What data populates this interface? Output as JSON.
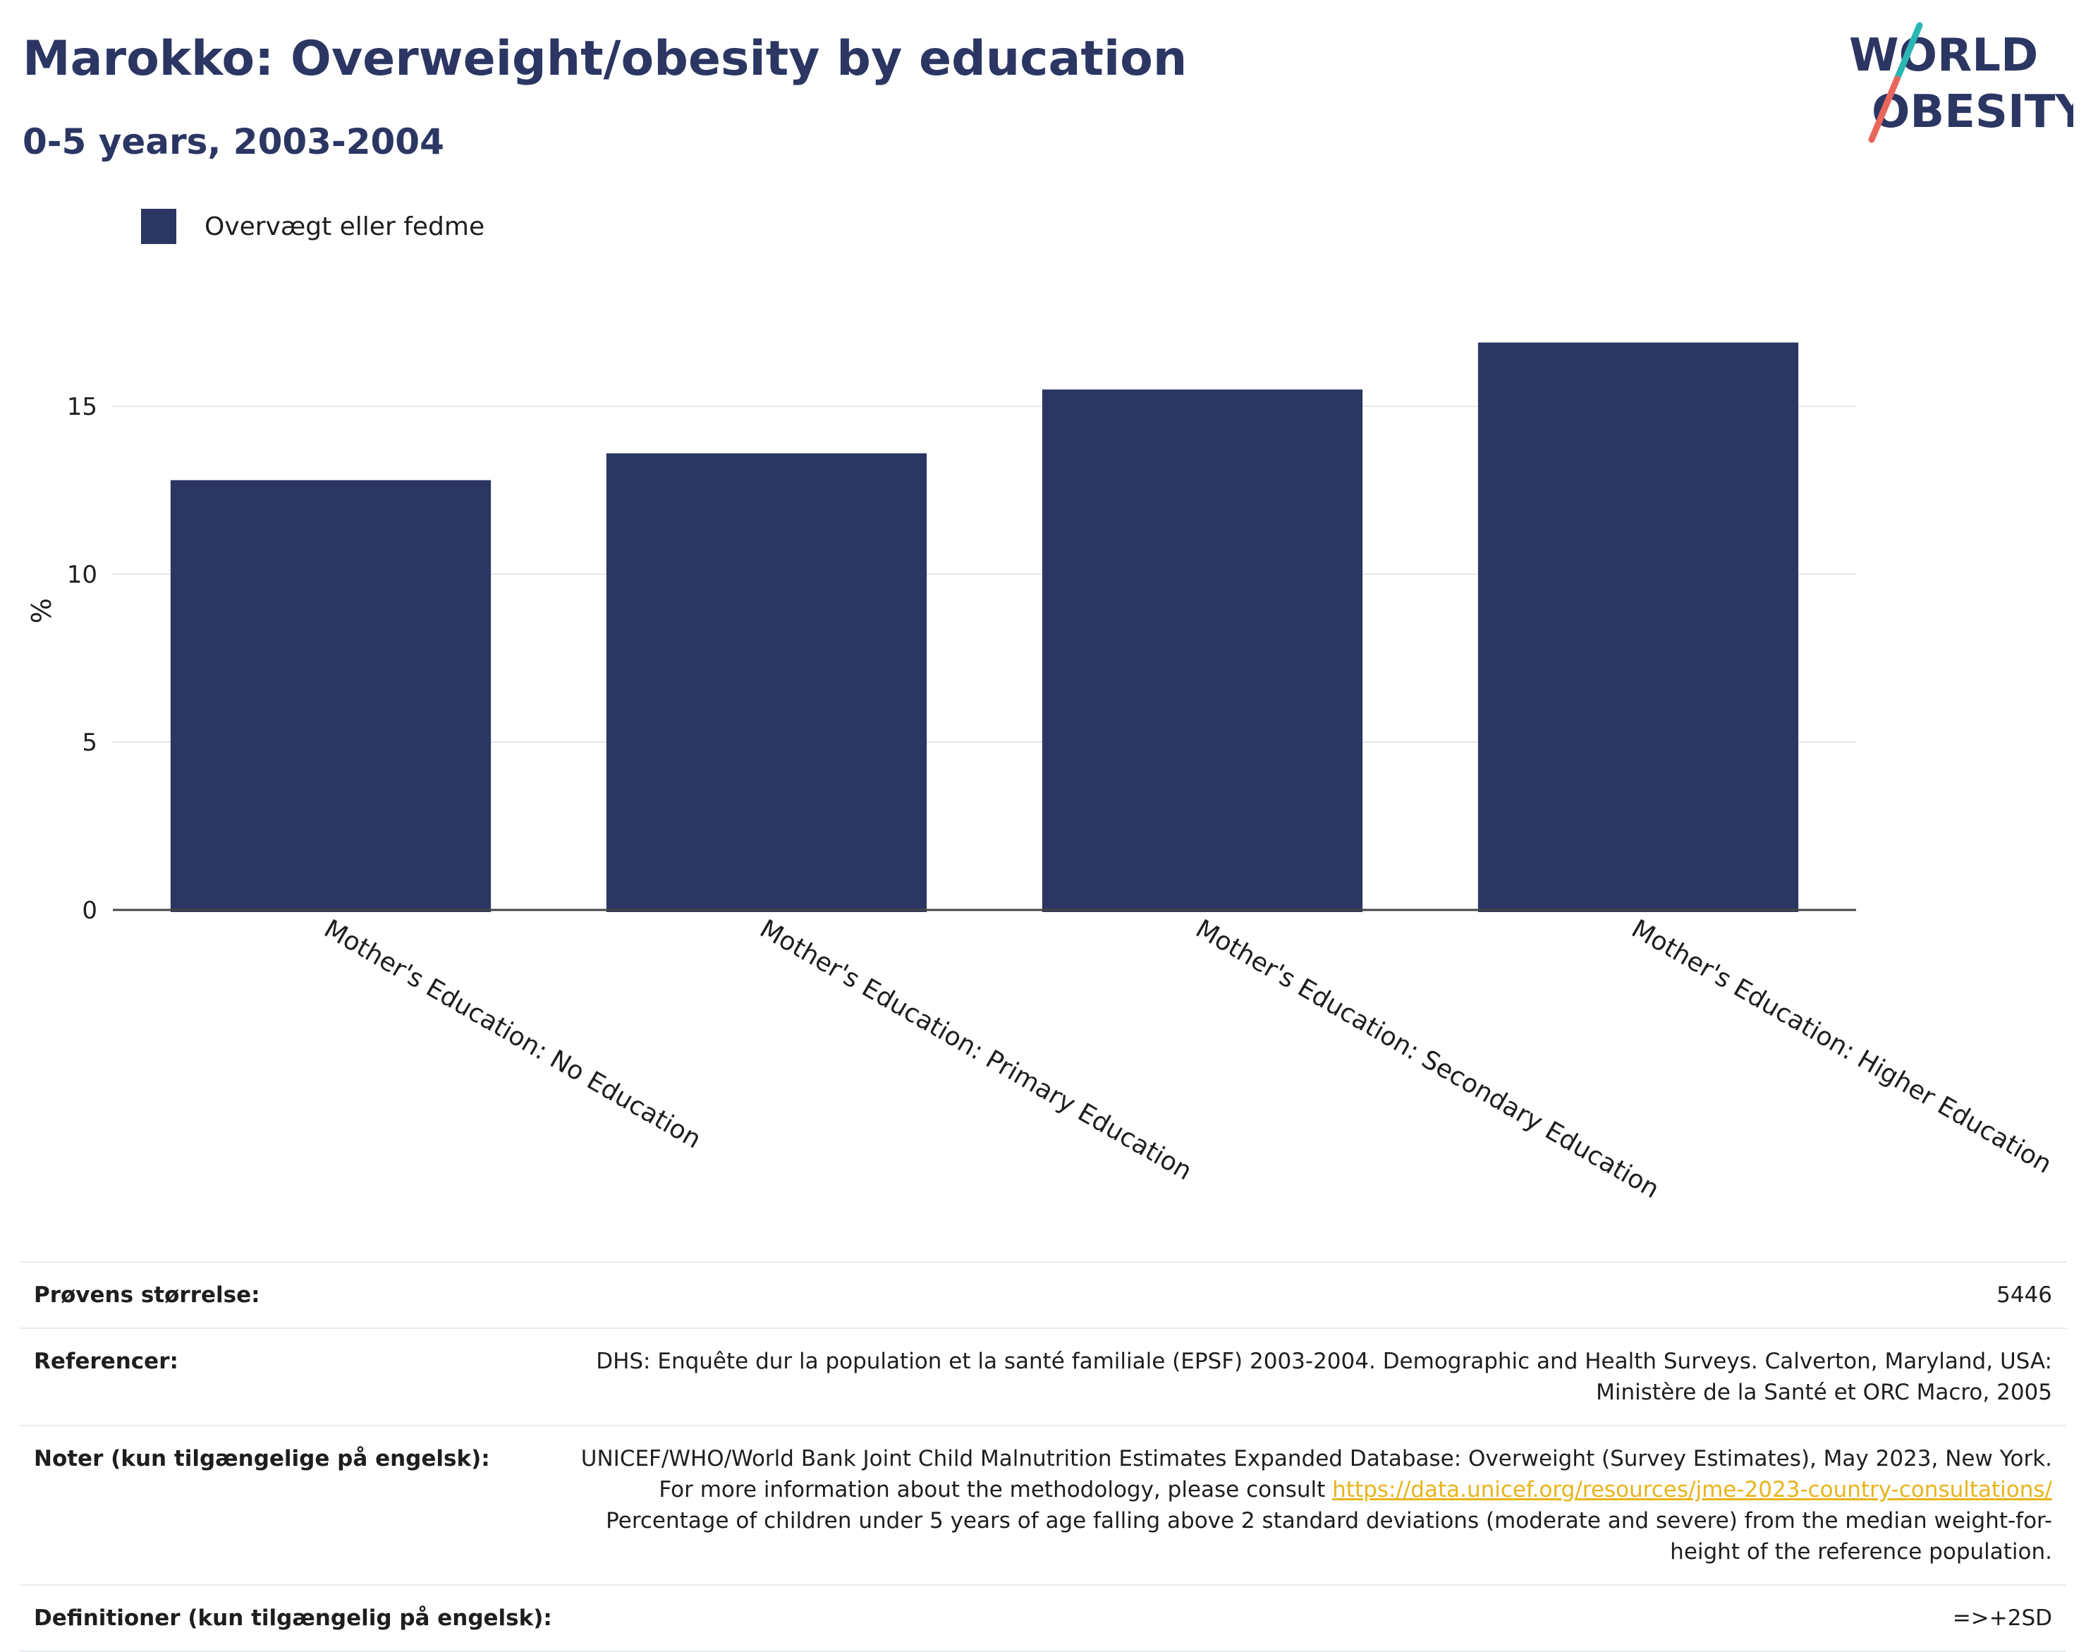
{
  "header": {
    "title": "Marokko: Overweight/obesity by education",
    "subtitle": "0-5 years, 2003-2004"
  },
  "logo": {
    "line1": "WORLD",
    "line2": "OBESITY"
  },
  "colors": {
    "bar": "#2b3663",
    "title": "#2b3663",
    "link": "#e8b41c",
    "logo_teal": "#2cb5b5",
    "logo_coral": "#e8665a"
  },
  "chart_data": {
    "type": "bar",
    "title": "Marokko: Overweight/obesity by education",
    "subtitle": "0-5 years, 2003-2004",
    "categories": [
      "Mother's Education: No Education",
      "Mother's Education: Primary Education",
      "Mother's Education: Secondary Education",
      "Mother's Education: Higher Education"
    ],
    "series": [
      {
        "name": "Overvægt eller fedme",
        "values": [
          12.8,
          13.6,
          15.5,
          16.9
        ]
      }
    ],
    "xlabel": "",
    "ylabel": "%",
    "ylim": [
      0,
      18.5
    ],
    "yticks": [
      0,
      5,
      10,
      15
    ],
    "grid": true,
    "legend": "top-left"
  },
  "info": {
    "rows": [
      {
        "label": "Prøvens størrelse:",
        "value": "5446"
      },
      {
        "label": "Referencer:",
        "value": "DHS: Enquête dur la population et la santé familiale (EPSF) 2003-2004. Demographic and Health Surveys. Calverton, Maryland, USA: Ministère de la Santé et ORC Macro, 2005"
      },
      {
        "label": "Noter (kun tilgængelige på engelsk):",
        "value_before": "UNICEF/WHO/World Bank Joint Child Malnutrition Estimates Expanded Database: Overweight (Survey Estimates), May 2023, New York. For more information about the methodology, please consult ",
        "link": "https://data.unicef.org/resources/jme-2023-country-consultations/",
        "value_after": " Percentage of children under 5 years of age falling above 2 standard deviations (moderate and severe) from the median weight-for-height of the reference population."
      },
      {
        "label": "Definitioner (kun tilgængelig på engelsk):",
        "value": "=>+2SD"
      }
    ]
  }
}
